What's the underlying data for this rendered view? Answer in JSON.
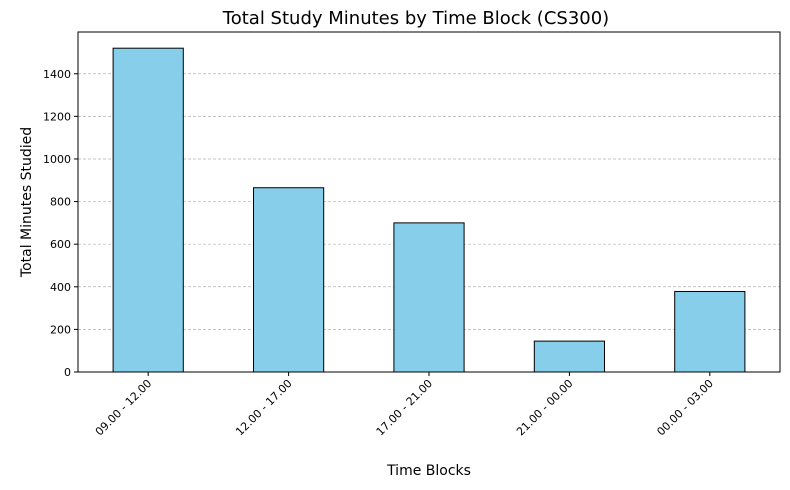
{
  "chart_data": {
    "type": "bar",
    "title": "Total Study Minutes by Time Block (CS300)",
    "xlabel": "Time Blocks",
    "ylabel": "Total Minutes Studied",
    "categories": [
      "09.00 - 12.00",
      "12.00 - 17.00",
      "17.00 - 21.00",
      "21.00 - 00.00",
      "00.00 - 03.00"
    ],
    "values": [
      1520,
      865,
      700,
      145,
      378
    ],
    "ylim": [
      0,
      1596
    ],
    "yticks": [
      0,
      200,
      400,
      600,
      800,
      1000,
      1200,
      1400
    ],
    "grid": "y-axis, dashed",
    "bar_color": "#87ceeb",
    "edge_color": "#000000"
  }
}
